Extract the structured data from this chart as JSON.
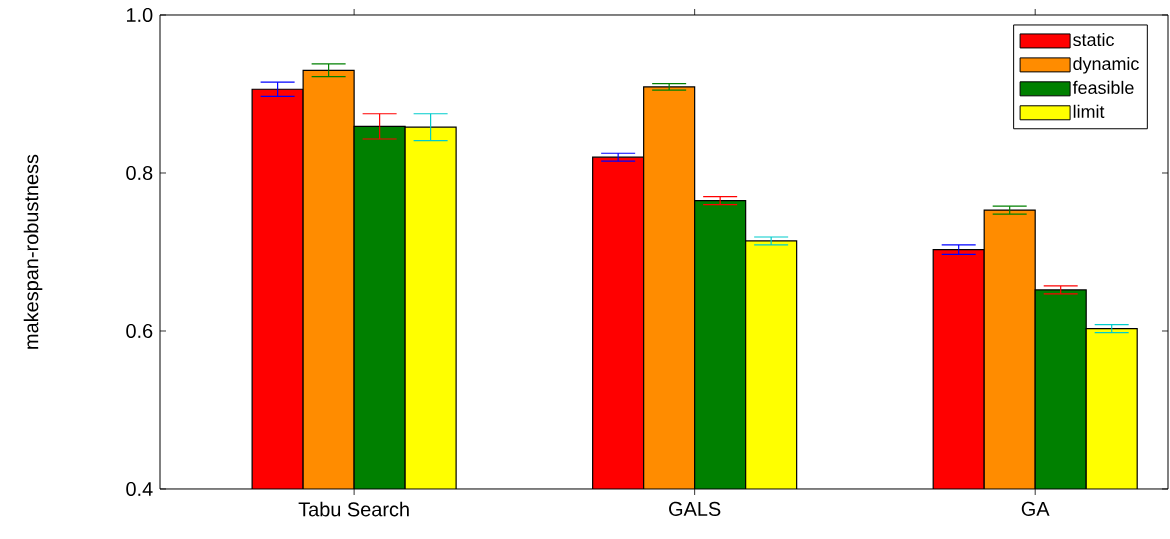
{
  "chart_data": {
    "type": "bar",
    "ylabel": "makespan-robustness",
    "categories": [
      "Tabu Search",
      "GALS",
      "GA"
    ],
    "series": [
      {
        "name": "static",
        "color": "#ff0000",
        "values": [
          0.906,
          0.82,
          0.703
        ],
        "errors": [
          0.009,
          0.005,
          0.006
        ]
      },
      {
        "name": "dynamic",
        "color": "#ff8c00",
        "values": [
          0.93,
          0.909,
          0.753
        ],
        "errors": [
          0.008,
          0.004,
          0.005
        ]
      },
      {
        "name": "feasible",
        "color": "#008000",
        "values": [
          0.859,
          0.765,
          0.652
        ],
        "errors": [
          0.016,
          0.005,
          0.005
        ]
      },
      {
        "name": "limit",
        "color": "#ffff00",
        "values": [
          0.858,
          0.714,
          0.603
        ],
        "errors": [
          0.017,
          0.005,
          0.005
        ]
      }
    ],
    "ylim": [
      0.4,
      1.0
    ],
    "yticks": [
      0.4,
      0.6,
      0.8,
      {
        "value": 1.0,
        "label": "1.0"
      }
    ],
    "legend": "top right",
    "grid": false
  }
}
